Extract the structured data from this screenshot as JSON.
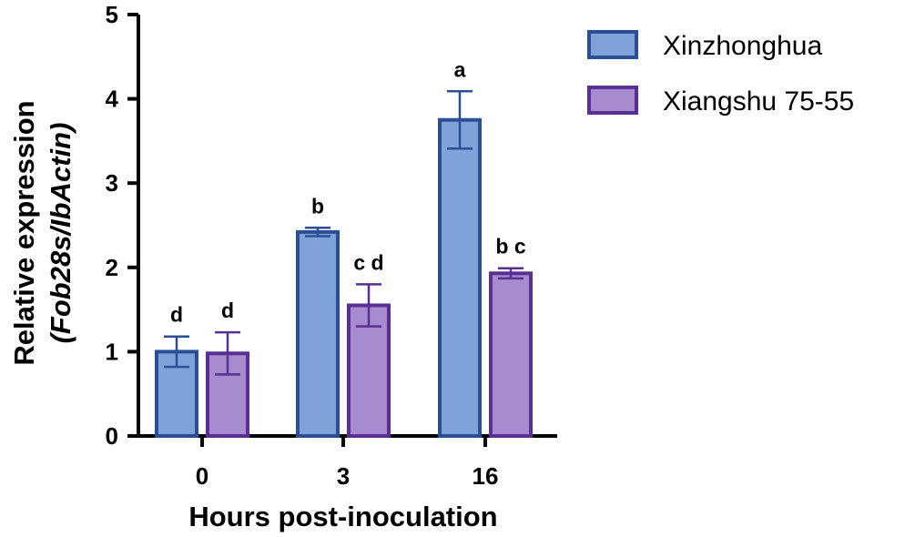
{
  "chart_data": {
    "type": "bar",
    "categories": [
      "0",
      "3",
      "16"
    ],
    "xlabel": "Hours post-inoculation",
    "ylabel_line1": "Relative expression",
    "ylabel_line2": "(Fob28s/IbActin)",
    "ylim": [
      0,
      5
    ],
    "yticks": [
      0,
      1,
      2,
      3,
      4,
      5
    ],
    "ytick_labels": [
      "0",
      "1",
      "2",
      "3",
      "4",
      "5"
    ],
    "legend_position": "top-right",
    "series": [
      {
        "name": "Xinzhonghua",
        "fill": "#7fa3d8",
        "stroke": "#2b4f96",
        "values": [
          1.0,
          2.42,
          3.75
        ],
        "errors": [
          0.18,
          0.05,
          0.34
        ],
        "sig_labels": [
          "d",
          "b",
          "a"
        ]
      },
      {
        "name": "Xiangshu 75-55",
        "fill": "#a78bcf",
        "stroke": "#5a2f93",
        "values": [
          0.98,
          1.55,
          1.93
        ],
        "errors": [
          0.25,
          0.25,
          0.06
        ],
        "sig_labels": [
          "d",
          "c d",
          "b c"
        ]
      }
    ]
  }
}
